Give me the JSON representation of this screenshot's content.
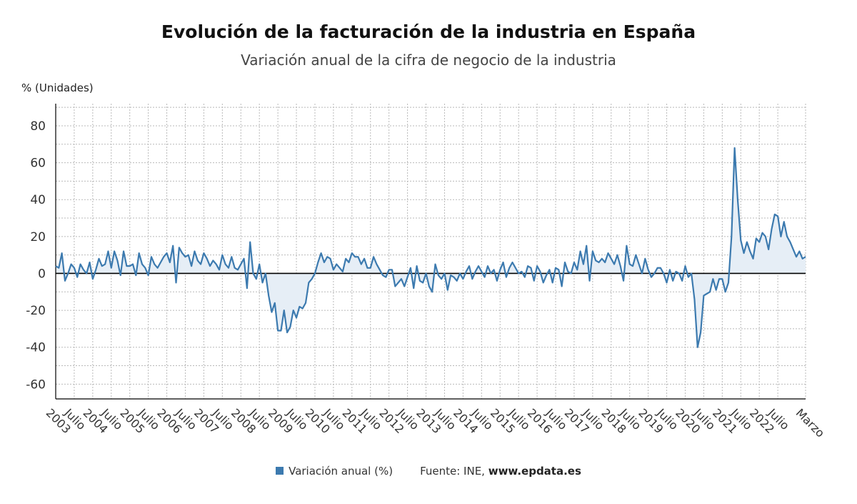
{
  "title": "Evolución de la facturación de la industria en España",
  "subtitle": "Variación anual de la cifra de negocio de la industria",
  "legend": {
    "series_label": "Variación anual (%)",
    "source_prefix": "Fuente: INE, ",
    "source_site": "www.epdata.es"
  },
  "colors": {
    "line": "#3c7aaf",
    "fill": "#e6eef6",
    "grid": "#b9b9b9",
    "axis": "#000000"
  },
  "chart_data": {
    "type": "area",
    "ylabel": "% (Unidades)",
    "ylim": [
      -68,
      92
    ],
    "yticks": [
      80,
      60,
      40,
      20,
      0,
      -20,
      -40,
      -60
    ],
    "grid": true,
    "x_start": "2003-01",
    "x_end": "2023-03",
    "xtick_labels": [
      "2003",
      "Julio",
      "2004",
      "Julio",
      "2005",
      "Julio",
      "2006",
      "Julio",
      "2007",
      "Julio",
      "2008",
      "Julio",
      "2009",
      "Julio",
      "2010",
      "Julio",
      "2011",
      "Julio",
      "2012",
      "Julio",
      "2013",
      "Julio",
      "2014",
      "Julio",
      "2015",
      "Julio",
      "2016",
      "Julio",
      "2017",
      "Julio",
      "2018",
      "Julio",
      "2019",
      "Julio",
      "2020",
      "Julio",
      "2021",
      "Julio",
      "2022",
      "Julio",
      "Marzo"
    ],
    "series": [
      {
        "name": "Variación anual (%)",
        "values": [
          4,
          3,
          11,
          -4,
          0,
          5,
          3,
          -2,
          5,
          2,
          0,
          6,
          -3,
          2,
          8,
          4,
          5,
          12,
          3,
          12,
          7,
          -1,
          12,
          4,
          4,
          5,
          -1,
          11,
          5,
          3,
          -1,
          9,
          5,
          3,
          6,
          9,
          11,
          6,
          15,
          -5,
          14,
          11,
          9,
          10,
          4,
          12,
          7,
          5,
          11,
          8,
          4,
          7,
          5,
          2,
          10,
          5,
          3,
          9,
          3,
          2,
          5,
          8,
          -8,
          17,
          0,
          -3,
          5,
          -5,
          0,
          -12,
          -21,
          -16,
          -31,
          -31,
          -20,
          -32,
          -29,
          -20,
          -24,
          -18,
          -19,
          -16,
          -5,
          -3,
          0,
          6,
          11,
          6,
          9,
          8,
          2,
          5,
          3,
          1,
          8,
          6,
          11,
          9,
          9,
          5,
          8,
          3,
          3,
          9,
          5,
          2,
          -1,
          -2,
          2,
          2,
          -7,
          -5,
          -3,
          -7,
          -2,
          3,
          -8,
          4,
          -4,
          -5,
          0,
          -7,
          -10,
          5,
          -1,
          -3,
          0,
          -9,
          -1,
          -2,
          -4,
          0,
          -3,
          1,
          4,
          -3,
          1,
          4,
          1,
          -2,
          4,
          0,
          2,
          -4,
          2,
          6,
          -2,
          3,
          6,
          3,
          0,
          1,
          -2,
          4,
          3,
          -4,
          4,
          1,
          -5,
          -1,
          2,
          -5,
          3,
          2,
          -7,
          6,
          1,
          0,
          6,
          2,
          12,
          5,
          15,
          -4,
          12,
          7,
          6,
          8,
          6,
          11,
          8,
          5,
          10,
          4,
          -4,
          15,
          5,
          4,
          10,
          5,
          0,
          8,
          2,
          -2,
          0,
          3,
          3,
          0,
          -5,
          2,
          -4,
          1,
          0,
          -4,
          4,
          -2,
          0,
          -14,
          -40,
          -32,
          -12,
          -11,
          -10,
          -3,
          -9,
          -3,
          -3,
          -10,
          -5,
          20,
          68,
          40,
          18,
          11,
          17,
          12,
          8,
          19,
          17,
          22,
          20,
          13,
          24,
          32,
          31,
          20,
          28,
          20,
          17,
          13,
          9,
          12,
          8,
          9
        ]
      }
    ]
  }
}
